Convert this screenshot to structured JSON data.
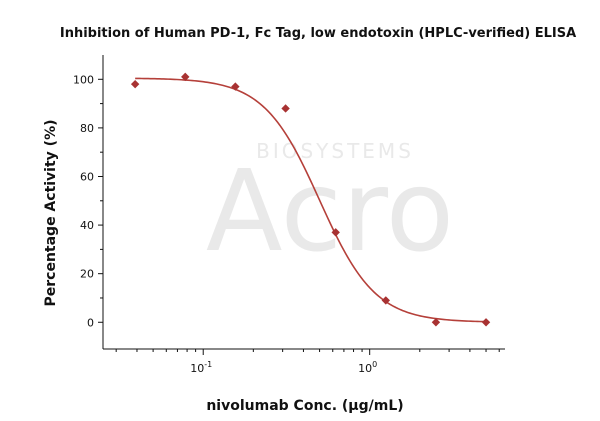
{
  "chart_data": {
    "type": "scatter",
    "title": "Inhibition of Human PD-1, Fc Tag, low endotoxin (HPLC-verified) ELISA",
    "xlabel": "nivolumab Conc. (µg/mL)",
    "ylabel": "Percentage Activity (%)",
    "x_scale": "log",
    "xlim": [
      0.025,
      6.5
    ],
    "ylim": [
      -11,
      110
    ],
    "x_tick_labels": [
      {
        "value": 0.1,
        "base": "10",
        "exp": "-1"
      },
      {
        "value": 1,
        "base": "10",
        "exp": "0"
      }
    ],
    "y_ticks": [
      0,
      20,
      40,
      60,
      80,
      100
    ],
    "grid": false,
    "legend": "none",
    "point_color": "#a83232",
    "curve_color": "#b5403a",
    "series": [
      {
        "x": [
          0.039,
          0.078,
          0.156,
          0.3125,
          0.625,
          1.25,
          2.5,
          5.0
        ],
        "y": [
          98,
          101,
          97,
          88,
          37,
          9,
          0,
          0
        ]
      }
    ],
    "fit": {
      "model": "4PL",
      "top": 100.5,
      "bottom": 0,
      "ic50": 0.5,
      "hill": 2.6
    },
    "watermark": {
      "small": "BIOSYSTEMS",
      "large": "Acro"
    }
  }
}
